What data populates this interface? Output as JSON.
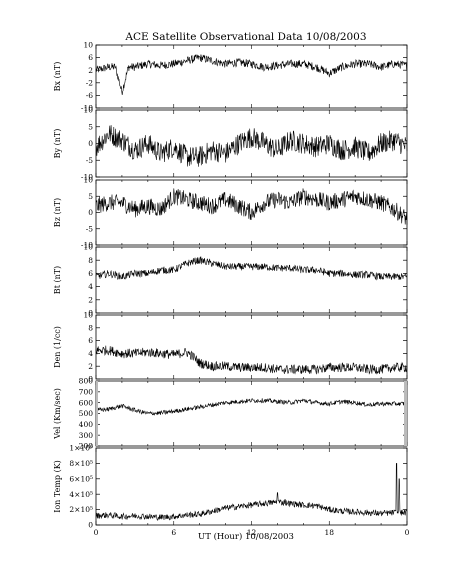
{
  "chart_data": {
    "type": "line",
    "title": "ACE Satellite Observational Data   10/08/2003",
    "xlabel": "UT (Hour)   10/08/2003",
    "x_range_hours": [
      0,
      24
    ],
    "x_tick_labels": [
      "0",
      "6",
      "12",
      "18",
      "0"
    ],
    "x_tick_hours": [
      0,
      6,
      12,
      18,
      24
    ],
    "panels": [
      {
        "id": "bx",
        "ylabel": "Bx (nT)",
        "ylim": [
          -10,
          10
        ],
        "yticks": [
          -10,
          -6,
          -2,
          2,
          6,
          10
        ],
        "ytick_labels": [
          "-10",
          "-6",
          "-2",
          "2",
          "6",
          "10"
        ],
        "x": [
          0,
          1,
          1.5,
          2,
          2.5,
          3,
          4,
          5,
          6,
          7,
          8,
          9,
          10,
          11,
          12,
          13,
          14,
          15,
          16,
          17,
          18,
          19,
          20,
          21,
          22,
          23,
          24
        ],
        "y": [
          2,
          3,
          3,
          -5,
          3,
          3,
          4,
          3.5,
          4,
          5,
          6,
          5,
          4,
          4.5,
          4,
          3,
          3.5,
          4,
          4,
          3,
          1,
          3,
          4,
          4,
          3,
          4,
          3.5
        ],
        "noise": 1.3
      },
      {
        "id": "by",
        "ylabel": "By (nT)",
        "ylim": [
          -10,
          10
        ],
        "yticks": [
          -10,
          -5,
          0,
          5,
          10
        ],
        "ytick_labels": [
          "-10",
          "-5",
          "0",
          "5",
          "10"
        ],
        "x": [
          0,
          1,
          2,
          3,
          4,
          5,
          6,
          7,
          8,
          9,
          10,
          11,
          12,
          13,
          14,
          15,
          16,
          17,
          18,
          19,
          20,
          21,
          22,
          23,
          24
        ],
        "y": [
          -1,
          3,
          1,
          -2,
          0,
          -3,
          -1,
          -4,
          -4,
          -2,
          -3,
          0,
          2,
          0,
          -2,
          1,
          0,
          -1,
          0,
          -2,
          -1,
          -3,
          0,
          1,
          -1
        ],
        "noise": 3.2
      },
      {
        "id": "bz",
        "ylabel": "Bz (nT)",
        "ylim": [
          -10,
          10
        ],
        "yticks": [
          -10,
          -5,
          0,
          5,
          10
        ],
        "ytick_labels": [
          "-10",
          "-5",
          "0",
          "5",
          "10"
        ],
        "x": [
          0,
          1,
          2,
          3,
          4,
          5,
          6,
          7,
          8,
          9,
          10,
          11,
          12,
          13,
          14,
          15,
          16,
          17,
          18,
          19,
          20,
          21,
          22,
          23,
          24
        ],
        "y": [
          2,
          3,
          3,
          1,
          2,
          1,
          5,
          4,
          3,
          2,
          4,
          2,
          0,
          3,
          4,
          3,
          5,
          4,
          3,
          4,
          5,
          4,
          3,
          1,
          -2
        ],
        "noise": 2.6
      },
      {
        "id": "bt",
        "ylabel": "Bt (nT)",
        "ylim": [
          0,
          10
        ],
        "yticks": [
          0,
          2,
          4,
          6,
          8,
          10
        ],
        "ytick_labels": [
          "0",
          "2",
          "4",
          "6",
          "8",
          "10"
        ],
        "x": [
          0,
          1,
          2,
          3,
          4,
          5,
          6,
          7,
          7.5,
          8,
          9,
          10,
          11,
          12,
          13,
          14,
          15,
          16,
          17,
          18,
          19,
          20,
          21,
          22,
          23,
          24
        ],
        "y": [
          5.5,
          6,
          5.5,
          6,
          6,
          6.5,
          6.5,
          7.5,
          7.8,
          8,
          7.5,
          7,
          7,
          7,
          7,
          6.8,
          6.8,
          6.5,
          6.5,
          6,
          6,
          5.8,
          5.8,
          5.5,
          5.5,
          5.5
        ],
        "noise": 0.55
      },
      {
        "id": "den",
        "ylabel": "Den (1/cc)",
        "ylim": [
          0,
          10
        ],
        "yticks": [
          0,
          2,
          4,
          6,
          8,
          10
        ],
        "ytick_labels": [
          "0",
          "2",
          "4",
          "6",
          "8",
          "10"
        ],
        "x": [
          0,
          1,
          2,
          3,
          4,
          5,
          6,
          7,
          7.5,
          8,
          9,
          10,
          11,
          12,
          13,
          14,
          15,
          16,
          17,
          18,
          19,
          20,
          21,
          22,
          23,
          24
        ],
        "y": [
          4.5,
          4.5,
          4,
          4,
          4.2,
          4,
          3.8,
          4.2,
          3.5,
          2.5,
          2,
          2,
          1.8,
          1.8,
          1.8,
          1.5,
          1.5,
          1.5,
          1.5,
          1.8,
          1.8,
          1.8,
          1.5,
          1.5,
          1.8,
          1.8
        ],
        "noise": 0.75
      },
      {
        "id": "vel",
        "ylabel": "Vel (Km/sec)",
        "ylim": [
          200,
          800
        ],
        "yticks": [
          200,
          300,
          400,
          500,
          600,
          700,
          800
        ],
        "ytick_labels": [
          "200",
          "300",
          "400",
          "500",
          "600",
          "700",
          "800"
        ],
        "x": [
          0,
          1,
          2,
          3,
          4,
          5,
          6,
          7,
          8,
          9,
          10,
          11,
          12,
          13,
          14,
          15,
          16,
          17,
          18,
          19,
          20,
          21,
          22,
          23,
          24
        ],
        "y": [
          530,
          540,
          570,
          530,
          500,
          505,
          520,
          540,
          560,
          580,
          600,
          610,
          620,
          620,
          610,
          600,
          620,
          600,
          590,
          610,
          600,
          580,
          590,
          590,
          590
        ],
        "noise": 20
      },
      {
        "id": "temp",
        "ylabel": "Ion Temp (K)",
        "ylim": [
          0,
          1000000
        ],
        "yticks": [
          0,
          200000,
          400000,
          600000,
          800000,
          1000000
        ],
        "ytick_labels": [
          "0",
          "2×10⁵",
          "4×10⁵",
          "6×10⁵",
          "8×10⁵",
          "1×10⁶"
        ],
        "x": [
          0,
          1,
          2,
          3,
          4,
          5,
          6,
          7,
          8,
          9,
          10,
          11,
          12,
          13,
          14,
          15,
          16,
          17,
          18,
          19,
          20,
          21,
          22,
          23,
          24
        ],
        "y": [
          120000,
          130000,
          110000,
          120000,
          110000,
          100000,
          110000,
          130000,
          140000,
          180000,
          220000,
          240000,
          260000,
          280000,
          300000,
          280000,
          260000,
          250000,
          200000,
          180000,
          170000,
          160000,
          150000,
          160000,
          160000
        ],
        "noise": 40000,
        "spikes": [
          [
            14,
            420000
          ],
          [
            14.6,
            330000
          ],
          [
            23.2,
            800000
          ],
          [
            23.4,
            600000
          ]
        ]
      }
    ]
  }
}
